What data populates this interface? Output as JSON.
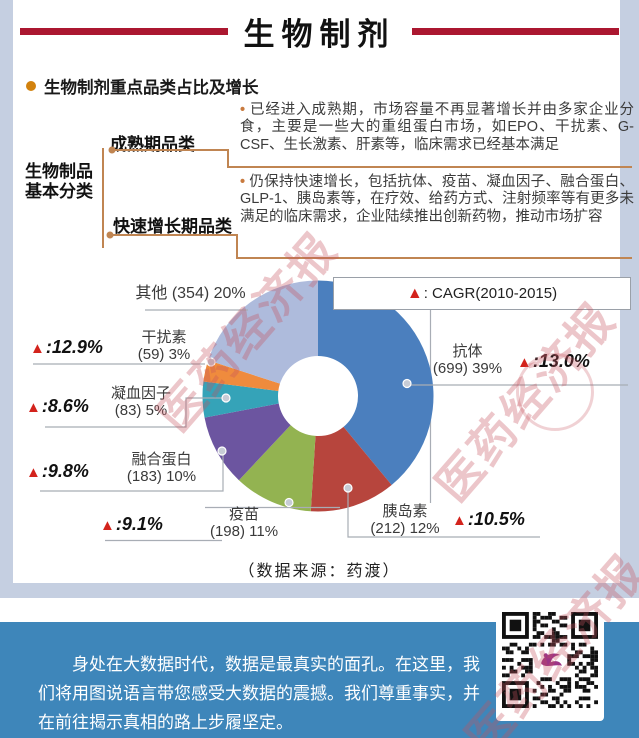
{
  "header": {
    "title": "生物制剂"
  },
  "section": {
    "title": "生物制剂重点品类占比及增长"
  },
  "icons": {
    "triangle": "▲",
    "bullet": "•"
  },
  "classification": {
    "root_label_line1": "生物制品",
    "root_label_line2": "基本分类",
    "branches": [
      {
        "label": "成熟期品类",
        "description": "已经进入成熟期，市场容量不再显著增长并由多家企业分食，主要是一些大的重组蛋白市场，如EPO、干扰素、G-CSF、生长激素、肝素等，临床需求已经基本满足"
      },
      {
        "label": "快速增长期品类",
        "description": "仍保持快速增长，包括抗体、疫苗、凝血因子、融合蛋白、GLP-1、胰岛素等，在疗效、给药方式、注射频率等有更多未满足的临床需求，企业陆续推出创新药物，推动市场扩容"
      }
    ]
  },
  "chart_data": {
    "type": "pie",
    "donut": true,
    "title": "生物制剂重点品类占比及增长",
    "legend_text": " : CAGR(2010-2015)",
    "start_angle_deg": 0,
    "direction": "clockwise",
    "slices": [
      {
        "label": "抗体",
        "value": 699,
        "pct": 39,
        "sub": "(699) 39%",
        "cagr_display": ":13.0%",
        "color": "#4b7fbe"
      },
      {
        "label": "胰岛素",
        "value": 212,
        "pct": 12,
        "sub": "(212) 12%",
        "cagr_display": ":10.5%",
        "color": "#b7453d"
      },
      {
        "label": "疫苗",
        "value": 198,
        "pct": 11,
        "sub": "(198) 11%",
        "cagr_display": ":9.1%",
        "color": "#93b351"
      },
      {
        "label": "融合蛋白",
        "value": 183,
        "pct": 10,
        "sub": "(183) 10%",
        "cagr_display": ":9.8%",
        "color": "#6c55a0"
      },
      {
        "label": "凝血因子",
        "value": 83,
        "pct": 5,
        "sub": "(83) 5%",
        "cagr_display": ":8.6%",
        "color": "#35a3b8"
      },
      {
        "label": "干扰素",
        "value": 59,
        "pct": 3,
        "sub": "(59) 3%",
        "cagr_display": ":12.9%",
        "color": "#ef8b3d"
      },
      {
        "label": "其他",
        "value": 354,
        "pct": 20,
        "sub": "(354) 20%",
        "cagr_display": null,
        "color": "#aebbdc"
      }
    ],
    "source": "（数据来源：药渡）"
  },
  "footer": {
    "paragraph": "身处在大数据时代，数据是最真实的面孔。在这里，我们将用图说语言带您感受大数据的震撼。我们尊重事实，并在前往揭示真相的路上步履坚定。"
  },
  "watermark": {
    "text": "医药经济报"
  }
}
